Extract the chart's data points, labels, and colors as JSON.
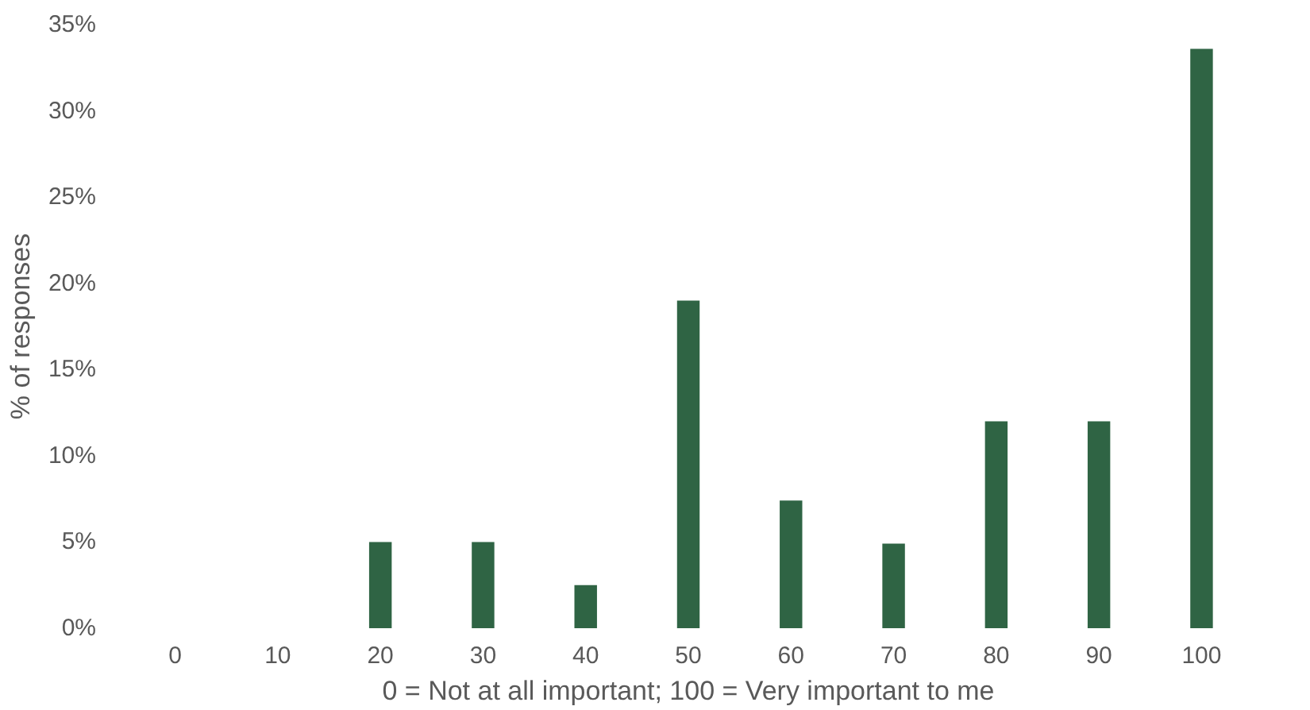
{
  "chart_data": {
    "type": "bar",
    "xlabel": "0 = Not at all important; 100 = Very important to me",
    "ylabel": "% of responses",
    "categories": [
      "0",
      "10",
      "20",
      "30",
      "40",
      "50",
      "60",
      "70",
      "80",
      "90",
      "100"
    ],
    "values": [
      0,
      0,
      5,
      5,
      2.5,
      19,
      7.4,
      4.9,
      12,
      12,
      33.6
    ],
    "color": "#2f6444",
    "ylim": [
      0,
      35
    ],
    "yticks": [
      {
        "value": 0,
        "label": "0%"
      },
      {
        "value": 5,
        "label": "5%"
      },
      {
        "value": 10,
        "label": "10%"
      },
      {
        "value": 15,
        "label": "15%"
      },
      {
        "value": 20,
        "label": "20%"
      },
      {
        "value": 25,
        "label": "25%"
      },
      {
        "value": 30,
        "label": "30%"
      },
      {
        "value": 35,
        "label": "35%"
      }
    ],
    "grid": false
  }
}
